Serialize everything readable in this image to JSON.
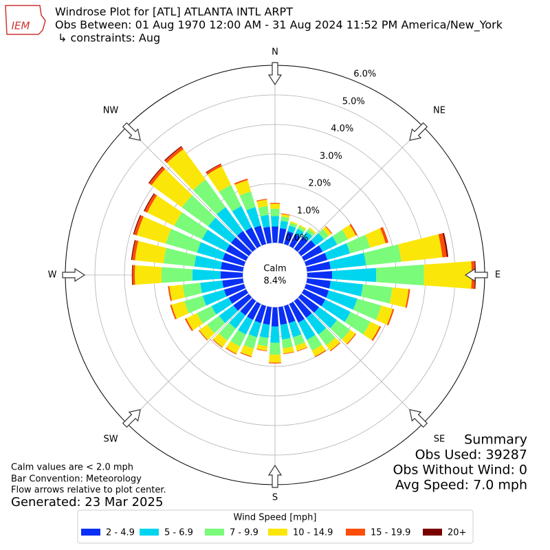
{
  "chart_data": {
    "type": "windrose",
    "logo": "IEM",
    "title": "Windrose Plot for [ATL] ATLANTA INTL ARPT",
    "subtitle": "Obs Between: 01 Aug 1970 12:00 AM - 31 Aug 2024 11:52 PM America/New_York",
    "constraints": "↳ constraints: Aug",
    "compass": [
      "N",
      "NE",
      "E",
      "SE",
      "S",
      "SW",
      "W",
      "NW"
    ],
    "calm_label": "Calm",
    "calm": {
      "value": 8.4,
      "label": "8.4%"
    },
    "rlim": [
      0,
      6
    ],
    "rticks": [
      {
        "value": 0,
        "label": "0.0%"
      },
      {
        "value": 1,
        "label": "1.0%"
      },
      {
        "value": 2,
        "label": "2.0%"
      },
      {
        "value": 3,
        "label": "3.0%"
      },
      {
        "value": 4,
        "label": "4.0%"
      },
      {
        "value": 5,
        "label": "5.0%"
      },
      {
        "value": 6,
        "label": "6.0%"
      }
    ],
    "grid": true,
    "directions": [
      0,
      10,
      20,
      30,
      40,
      50,
      60,
      70,
      80,
      90,
      100,
      110,
      120,
      130,
      140,
      150,
      160,
      170,
      180,
      190,
      200,
      210,
      220,
      230,
      240,
      250,
      260,
      270,
      280,
      290,
      300,
      310,
      320,
      330,
      340,
      350
    ],
    "legend_title": "Wind Speed [mph]",
    "series": [
      {
        "name": "2 - 4.9",
        "color": "#0a2ff5",
        "values": [
          0.55,
          0.5,
          0.45,
          0.45,
          0.5,
          0.6,
          0.7,
          0.75,
          0.8,
          0.84,
          0.8,
          0.8,
          0.8,
          0.75,
          0.7,
          0.7,
          0.6,
          0.6,
          0.65,
          0.6,
          0.6,
          0.6,
          0.6,
          0.65,
          0.65,
          0.7,
          0.7,
          0.75,
          0.75,
          0.75,
          0.75,
          0.75,
          0.75,
          0.7,
          0.65,
          0.55
        ]
      },
      {
        "name": "5 - 6.9",
        "color": "#00d5f0",
        "values": [
          0.35,
          0.25,
          0.2,
          0.2,
          0.22,
          0.35,
          0.55,
          0.8,
          1.2,
          1.49,
          1.1,
          1.0,
          0.95,
          0.75,
          0.7,
          0.65,
          0.5,
          0.5,
          0.55,
          0.45,
          0.5,
          0.55,
          0.55,
          0.6,
          0.65,
          0.75,
          0.75,
          0.95,
          0.9,
          0.9,
          0.9,
          0.95,
          1.0,
          0.8,
          0.65,
          0.4
        ]
      },
      {
        "name": "7 - 9.9",
        "color": "#7afb7a",
        "values": [
          0.25,
          0.15,
          0.1,
          0.1,
          0.12,
          0.2,
          0.4,
          0.7,
          1.2,
          1.62,
          1.0,
          0.85,
          0.75,
          0.55,
          0.45,
          0.4,
          0.3,
          0.3,
          0.4,
          0.28,
          0.4,
          0.45,
          0.5,
          0.5,
          0.55,
          0.65,
          0.6,
          1.05,
          1.05,
          1.1,
          1.05,
          1.1,
          1.15,
          0.8,
          0.55,
          0.3
        ]
      },
      {
        "name": "10 - 14.9",
        "color": "#fbe60a",
        "values": [
          0.17,
          0.08,
          0.05,
          0.05,
          0.06,
          0.12,
          0.3,
          0.55,
          1.4,
          1.61,
          0.55,
          0.4,
          0.35,
          0.22,
          0.22,
          0.22,
          0.18,
          0.18,
          0.27,
          0.15,
          0.27,
          0.27,
          0.27,
          0.32,
          0.4,
          0.45,
          0.45,
          0.9,
          0.97,
          1.02,
          1.02,
          1.27,
          1.27,
          0.7,
          0.4,
          0.22
        ]
      },
      {
        "name": "15 - 19.9",
        "color": "#fb4e09",
        "values": [
          0.03,
          0.02,
          0,
          0,
          0,
          0.03,
          0.05,
          0.1,
          0.15,
          0.11,
          0.05,
          0.05,
          0.05,
          0.03,
          0.03,
          0.03,
          0.02,
          0.02,
          0.03,
          0.02,
          0.03,
          0.03,
          0.03,
          0.03,
          0.05,
          0.05,
          0.05,
          0.08,
          0.1,
          0.1,
          0.1,
          0.1,
          0.1,
          0.08,
          0.05,
          0.03
        ]
      },
      {
        "name": "20+",
        "color": "#7a0000",
        "values": [
          0,
          0,
          0,
          0,
          0,
          0,
          0,
          0,
          0.05,
          0.03,
          0,
          0,
          0,
          0,
          0,
          0,
          0,
          0,
          0,
          0,
          0,
          0,
          0,
          0,
          0,
          0,
          0,
          0.02,
          0.03,
          0.03,
          0.03,
          0.03,
          0.03,
          0.02,
          0,
          0
        ]
      }
    ],
    "notes": [
      "Calm values are < 2.0 mph",
      "Bar Convention: Meteorology",
      "Flow arrows relative to plot center."
    ],
    "generated": "Generated: 23 Mar 2025",
    "summary": [
      "Summary",
      "Obs Used: 39287",
      "Obs Without Wind: 0",
      "Avg Speed: 7.0 mph"
    ]
  }
}
